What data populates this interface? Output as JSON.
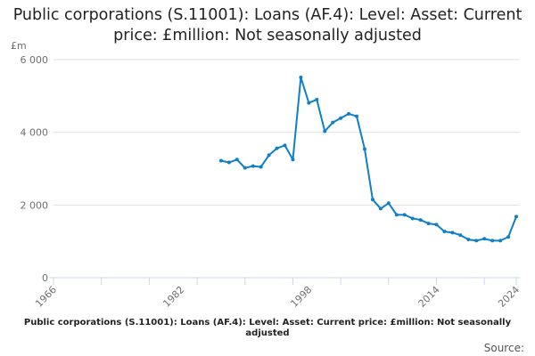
{
  "chart_data": {
    "type": "line",
    "title": "Public corporations (S.11001): Loans (AF.4): Level: Asset: Current price: £million: Not seasonally adjusted",
    "ylabel": "£m",
    "xlabel": "",
    "xlim": [
      1966,
      2024
    ],
    "ylim": [
      0,
      6000
    ],
    "yticks": [
      0,
      2000,
      4000,
      6000
    ],
    "ytick_labels": [
      "0",
      "2 000",
      "4 000",
      "6 000"
    ],
    "xtick_labels": [
      "1966",
      "1982",
      "1998",
      "2014",
      "2024"
    ],
    "xticks": [
      1966,
      1982,
      1998,
      2014,
      2024
    ],
    "grid": true,
    "series": [
      {
        "name": "Public corporations loans",
        "color": "#0f7fc8",
        "x": [
          1987,
          1988,
          1989,
          1990,
          1991,
          1992,
          1993,
          1994,
          1995,
          1996,
          1997,
          1998,
          1999,
          2000,
          2001,
          2002,
          2003,
          2004,
          2005,
          2006,
          2007,
          2008,
          2009,
          2010,
          2011,
          2012,
          2013,
          2014,
          2015,
          2016,
          2017,
          2018,
          2019,
          2020,
          2021,
          2022,
          2023,
          2024
        ],
        "values": [
          3220,
          3170,
          3250,
          3020,
          3070,
          3050,
          3370,
          3560,
          3640,
          3250,
          5510,
          4810,
          4900,
          4030,
          4270,
          4390,
          4510,
          4440,
          3540,
          2150,
          1900,
          2050,
          1730,
          1730,
          1630,
          1590,
          1490,
          1460,
          1270,
          1240,
          1170,
          1050,
          1020,
          1070,
          1020,
          1020,
          1120,
          1680
        ]
      }
    ]
  },
  "footer": "Public corporations (S.11001): Loans (AF.4): Level: Asset: Current price: £million: Not seasonally adjusted",
  "source_label": "Source:"
}
